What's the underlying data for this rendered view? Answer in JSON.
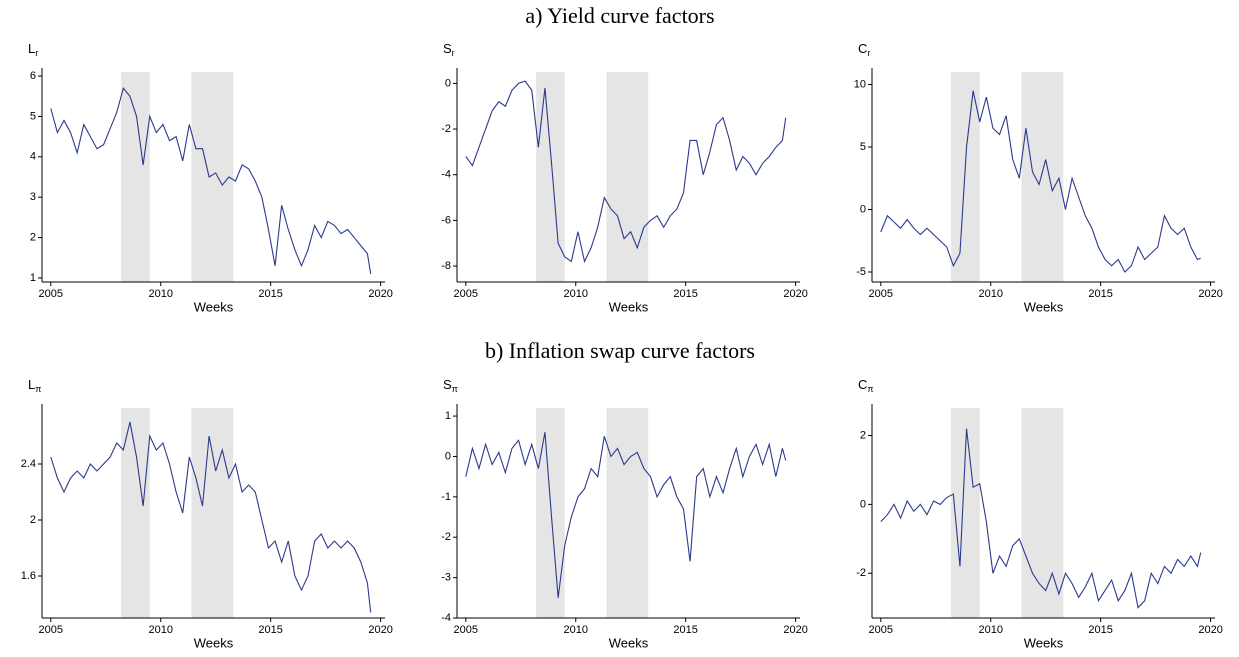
{
  "sections": [
    {
      "title": "a) Yield curve factors"
    },
    {
      "title": "b) Inflation swap curve factors"
    }
  ],
  "chart_data": [
    {
      "type": "line",
      "ylabel": "L",
      "ylabel_sub": "r",
      "xlabel": "Weeks",
      "xlim": [
        2004.6,
        2020.2
      ],
      "xticks": [
        2005,
        2010,
        2015,
        2020
      ],
      "ylim": [
        0.9,
        6.1
      ],
      "yticks": [
        1,
        2,
        3,
        4,
        5,
        6
      ],
      "shaded_regions": [
        [
          2008.2,
          2009.5
        ],
        [
          2011.4,
          2013.3
        ]
      ],
      "shade_color": "#e5e5e5",
      "x": [
        2005.0,
        2005.3,
        2005.6,
        2005.9,
        2006.2,
        2006.5,
        2006.8,
        2007.1,
        2007.4,
        2007.7,
        2008.0,
        2008.3,
        2008.6,
        2008.9,
        2009.2,
        2009.5,
        2009.8,
        2010.1,
        2010.4,
        2010.7,
        2011.0,
        2011.3,
        2011.6,
        2011.9,
        2012.2,
        2012.5,
        2012.8,
        2013.1,
        2013.4,
        2013.7,
        2014.0,
        2014.3,
        2014.6,
        2014.9,
        2015.2,
        2015.5,
        2015.8,
        2016.1,
        2016.4,
        2016.7,
        2017.0,
        2017.3,
        2017.6,
        2017.9,
        2018.2,
        2018.5,
        2018.8,
        2019.1,
        2019.4,
        2019.55
      ],
      "series": [
        {
          "color": "#2b3a8c",
          "values": [
            5.2,
            4.6,
            4.9,
            4.6,
            4.1,
            4.8,
            4.5,
            4.2,
            4.3,
            4.7,
            5.1,
            5.7,
            5.5,
            5.0,
            3.8,
            5.0,
            4.6,
            4.8,
            4.4,
            4.5,
            3.9,
            4.8,
            4.2,
            4.2,
            3.5,
            3.6,
            3.3,
            3.5,
            3.4,
            3.8,
            3.7,
            3.4,
            3.0,
            2.2,
            1.3,
            2.8,
            2.2,
            1.7,
            1.3,
            1.7,
            2.3,
            2.0,
            2.4,
            2.3,
            2.1,
            2.2,
            2.0,
            1.8,
            1.6,
            1.1
          ]
        }
      ]
    },
    {
      "type": "line",
      "ylabel": "S",
      "ylabel_sub": "r",
      "xlabel": "Weeks",
      "xlim": [
        2004.6,
        2020.2
      ],
      "xticks": [
        2005,
        2010,
        2015,
        2020
      ],
      "ylim": [
        -8.7,
        0.5
      ],
      "yticks": [
        -8,
        -6,
        -4,
        -2,
        0
      ],
      "shaded_regions": [
        [
          2008.2,
          2009.5
        ],
        [
          2011.4,
          2013.3
        ]
      ],
      "shade_color": "#e5e5e5",
      "x": [
        2005.0,
        2005.3,
        2005.6,
        2005.9,
        2006.2,
        2006.5,
        2006.8,
        2007.1,
        2007.4,
        2007.7,
        2008.0,
        2008.3,
        2008.6,
        2008.9,
        2009.2,
        2009.5,
        2009.8,
        2010.1,
        2010.4,
        2010.7,
        2011.0,
        2011.3,
        2011.6,
        2011.9,
        2012.2,
        2012.5,
        2012.8,
        2013.1,
        2013.4,
        2013.7,
        2014.0,
        2014.3,
        2014.6,
        2014.9,
        2015.2,
        2015.5,
        2015.8,
        2016.1,
        2016.4,
        2016.7,
        2017.0,
        2017.3,
        2017.6,
        2017.9,
        2018.2,
        2018.5,
        2018.8,
        2019.1,
        2019.4,
        2019.55
      ],
      "series": [
        {
          "color": "#2b3a8c",
          "values": [
            -3.2,
            -3.6,
            -2.8,
            -2.0,
            -1.2,
            -0.8,
            -1.0,
            -0.3,
            0.0,
            0.1,
            -0.3,
            -2.8,
            -0.2,
            -3.5,
            -7.0,
            -7.6,
            -7.8,
            -6.5,
            -7.8,
            -7.2,
            -6.3,
            -5.0,
            -5.5,
            -5.8,
            -6.8,
            -6.5,
            -7.2,
            -6.3,
            -6.0,
            -5.8,
            -6.3,
            -5.8,
            -5.5,
            -4.8,
            -2.5,
            -2.5,
            -4.0,
            -3.0,
            -1.8,
            -1.5,
            -2.5,
            -3.8,
            -3.2,
            -3.5,
            -4.0,
            -3.5,
            -3.2,
            -2.8,
            -2.5,
            -1.5
          ]
        }
      ]
    },
    {
      "type": "line",
      "ylabel": "C",
      "ylabel_sub": "r",
      "xlabel": "Weeks",
      "xlim": [
        2004.6,
        2020.2
      ],
      "xticks": [
        2005,
        2010,
        2015,
        2020
      ],
      "ylim": [
        -5.8,
        11
      ],
      "yticks": [
        -5,
        0,
        5,
        10
      ],
      "shaded_regions": [
        [
          2008.2,
          2009.5
        ],
        [
          2011.4,
          2013.3
        ]
      ],
      "shade_color": "#e5e5e5",
      "x": [
        2005.0,
        2005.3,
        2005.6,
        2005.9,
        2006.2,
        2006.5,
        2006.8,
        2007.1,
        2007.4,
        2007.7,
        2008.0,
        2008.3,
        2008.6,
        2008.9,
        2009.2,
        2009.5,
        2009.8,
        2010.1,
        2010.4,
        2010.7,
        2011.0,
        2011.3,
        2011.6,
        2011.9,
        2012.2,
        2012.5,
        2012.8,
        2013.1,
        2013.4,
        2013.7,
        2014.0,
        2014.3,
        2014.6,
        2014.9,
        2015.2,
        2015.5,
        2015.8,
        2016.1,
        2016.4,
        2016.7,
        2017.0,
        2017.3,
        2017.6,
        2017.9,
        2018.2,
        2018.5,
        2018.8,
        2019.1,
        2019.4,
        2019.55
      ],
      "series": [
        {
          "color": "#2b3a8c",
          "values": [
            -1.8,
            -0.5,
            -1.0,
            -1.5,
            -0.8,
            -1.5,
            -2.0,
            -1.5,
            -2.0,
            -2.5,
            -3.0,
            -4.5,
            -3.5,
            5.0,
            9.5,
            7.0,
            9.0,
            6.5,
            6.0,
            7.5,
            4.0,
            2.5,
            6.5,
            3.0,
            2.0,
            4.0,
            1.5,
            2.5,
            0.0,
            2.5,
            1.0,
            -0.5,
            -1.5,
            -3.0,
            -4.0,
            -4.5,
            -4.0,
            -5.0,
            -4.5,
            -3.0,
            -4.0,
            -3.5,
            -3.0,
            -0.5,
            -1.5,
            -2.0,
            -1.5,
            -3.0,
            -4.0,
            -3.9
          ]
        }
      ]
    },
    {
      "type": "line",
      "ylabel": "L",
      "ylabel_sub": "π",
      "xlabel": "Weeks",
      "xlim": [
        2004.6,
        2020.2
      ],
      "xticks": [
        2005,
        2010,
        2015,
        2020
      ],
      "ylim": [
        1.3,
        2.8
      ],
      "yticks": [
        1.6,
        2.0,
        2.4
      ],
      "shaded_regions": [
        [
          2008.2,
          2009.5
        ],
        [
          2011.4,
          2013.3
        ]
      ],
      "shade_color": "#e5e5e5",
      "x": [
        2005.0,
        2005.3,
        2005.6,
        2005.9,
        2006.2,
        2006.5,
        2006.8,
        2007.1,
        2007.4,
        2007.7,
        2008.0,
        2008.3,
        2008.6,
        2008.9,
        2009.2,
        2009.5,
        2009.8,
        2010.1,
        2010.4,
        2010.7,
        2011.0,
        2011.3,
        2011.6,
        2011.9,
        2012.2,
        2012.5,
        2012.8,
        2013.1,
        2013.4,
        2013.7,
        2014.0,
        2014.3,
        2014.6,
        2014.9,
        2015.2,
        2015.5,
        2015.8,
        2016.1,
        2016.4,
        2016.7,
        2017.0,
        2017.3,
        2017.6,
        2017.9,
        2018.2,
        2018.5,
        2018.8,
        2019.1,
        2019.4,
        2019.55
      ],
      "series": [
        {
          "color": "#2b3a8c",
          "values": [
            2.45,
            2.3,
            2.2,
            2.3,
            2.35,
            2.3,
            2.4,
            2.35,
            2.4,
            2.45,
            2.55,
            2.5,
            2.7,
            2.45,
            2.1,
            2.6,
            2.5,
            2.55,
            2.4,
            2.2,
            2.05,
            2.45,
            2.3,
            2.1,
            2.6,
            2.35,
            2.5,
            2.3,
            2.4,
            2.2,
            2.25,
            2.2,
            2.0,
            1.8,
            1.85,
            1.7,
            1.85,
            1.6,
            1.5,
            1.6,
            1.85,
            1.9,
            1.8,
            1.85,
            1.8,
            1.85,
            1.8,
            1.7,
            1.55,
            1.34
          ]
        }
      ]
    },
    {
      "type": "line",
      "ylabel": "S",
      "ylabel_sub": "π",
      "xlabel": "Weeks",
      "xlim": [
        2004.6,
        2020.2
      ],
      "xticks": [
        2005,
        2010,
        2015,
        2020
      ],
      "ylim": [
        -4,
        1.2
      ],
      "yticks": [
        -4,
        -3,
        -2,
        -1,
        0,
        1
      ],
      "shaded_regions": [
        [
          2008.2,
          2009.5
        ],
        [
          2011.4,
          2013.3
        ]
      ],
      "shade_color": "#e5e5e5",
      "x": [
        2005.0,
        2005.3,
        2005.6,
        2005.9,
        2006.2,
        2006.5,
        2006.8,
        2007.1,
        2007.4,
        2007.7,
        2008.0,
        2008.3,
        2008.6,
        2008.9,
        2009.2,
        2009.5,
        2009.8,
        2010.1,
        2010.4,
        2010.7,
        2011.0,
        2011.3,
        2011.6,
        2011.9,
        2012.2,
        2012.5,
        2012.8,
        2013.1,
        2013.4,
        2013.7,
        2014.0,
        2014.3,
        2014.6,
        2014.9,
        2015.2,
        2015.5,
        2015.8,
        2016.1,
        2016.4,
        2016.7,
        2017.0,
        2017.3,
        2017.6,
        2017.9,
        2018.2,
        2018.5,
        2018.8,
        2019.1,
        2019.4,
        2019.55
      ],
      "series": [
        {
          "color": "#2b3a8c",
          "values": [
            -0.5,
            0.2,
            -0.3,
            0.3,
            -0.2,
            0.1,
            -0.4,
            0.2,
            0.4,
            -0.2,
            0.3,
            -0.3,
            0.6,
            -1.5,
            -3.5,
            -2.2,
            -1.5,
            -1.0,
            -0.8,
            -0.3,
            -0.5,
            0.5,
            0.0,
            0.2,
            -0.2,
            0.0,
            0.1,
            -0.3,
            -0.5,
            -1.0,
            -0.7,
            -0.5,
            -1.0,
            -1.3,
            -2.6,
            -0.5,
            -0.3,
            -1.0,
            -0.5,
            -0.9,
            -0.3,
            0.2,
            -0.5,
            0.0,
            0.3,
            -0.2,
            0.3,
            -0.5,
            0.2,
            -0.1
          ]
        }
      ]
    },
    {
      "type": "line",
      "ylabel": "C",
      "ylabel_sub": "π",
      "xlabel": "Weeks",
      "xlim": [
        2004.6,
        2020.2
      ],
      "xticks": [
        2005,
        2010,
        2015,
        2020
      ],
      "ylim": [
        -3.3,
        2.8
      ],
      "yticks": [
        -2,
        0,
        2
      ],
      "shaded_regions": [
        [
          2008.2,
          2009.5
        ],
        [
          2011.4,
          2013.3
        ]
      ],
      "shade_color": "#e5e5e5",
      "x": [
        2005.0,
        2005.3,
        2005.6,
        2005.9,
        2006.2,
        2006.5,
        2006.8,
        2007.1,
        2007.4,
        2007.7,
        2008.0,
        2008.3,
        2008.6,
        2008.9,
        2009.2,
        2009.5,
        2009.8,
        2010.1,
        2010.4,
        2010.7,
        2011.0,
        2011.3,
        2011.6,
        2011.9,
        2012.2,
        2012.5,
        2012.8,
        2013.1,
        2013.4,
        2013.7,
        2014.0,
        2014.3,
        2014.6,
        2014.9,
        2015.2,
        2015.5,
        2015.8,
        2016.1,
        2016.4,
        2016.7,
        2017.0,
        2017.3,
        2017.6,
        2017.9,
        2018.2,
        2018.5,
        2018.8,
        2019.1,
        2019.4,
        2019.55
      ],
      "series": [
        {
          "color": "#2b3a8c",
          "values": [
            -0.5,
            -0.3,
            0.0,
            -0.4,
            0.1,
            -0.2,
            0.0,
            -0.3,
            0.1,
            0.0,
            0.2,
            0.3,
            -1.8,
            2.2,
            0.5,
            0.6,
            -0.5,
            -2.0,
            -1.5,
            -1.8,
            -1.2,
            -1.0,
            -1.5,
            -2.0,
            -2.3,
            -2.5,
            -2.0,
            -2.6,
            -2.0,
            -2.3,
            -2.7,
            -2.4,
            -2.0,
            -2.8,
            -2.5,
            -2.2,
            -2.8,
            -2.5,
            -2.0,
            -3.0,
            -2.8,
            -2.0,
            -2.3,
            -1.8,
            -2.0,
            -1.6,
            -1.8,
            -1.5,
            -1.8,
            -1.4
          ]
        }
      ]
    }
  ]
}
